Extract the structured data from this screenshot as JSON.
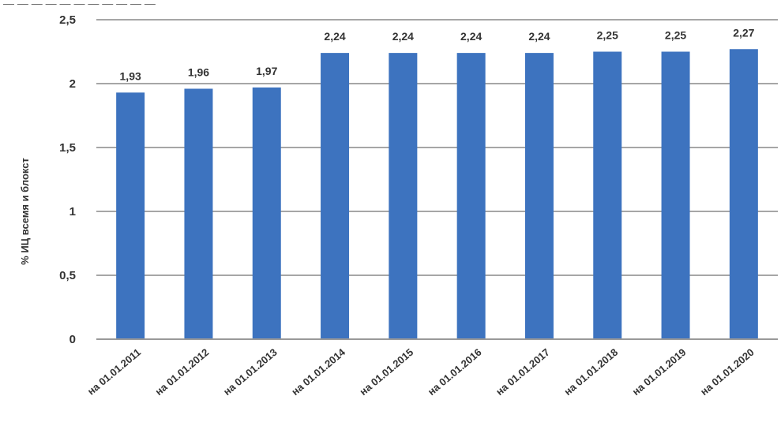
{
  "chart_data": {
    "type": "bar",
    "title": "",
    "xlabel": "",
    "ylabel": "% ИЦ всемя и блокст",
    "ylim": [
      0,
      2.5
    ],
    "yticks": [
      "0",
      "0,5",
      "1",
      "1,5",
      "2",
      "2,5"
    ],
    "grid": true,
    "categories": [
      "на 01.01.2011",
      "на 01.01.2012",
      "на 01.01.2013",
      "на 01.01.2014",
      "на 01.01.2015",
      "на 01.01.2016",
      "на 01.01.2017",
      "на 01.01.2018",
      "на 01.01.2019",
      "на 01.01.2020"
    ],
    "values": [
      1.93,
      1.96,
      1.97,
      2.24,
      2.24,
      2.24,
      2.24,
      2.25,
      2.25,
      2.27
    ],
    "value_labels": [
      "1,93",
      "1,96",
      "1,97",
      "2,24",
      "2,24",
      "2,24",
      "2,24",
      "2,25",
      "2,25",
      "2,27"
    ],
    "colors": {
      "bar": "#3d73bf",
      "grid": "#a6a6a6",
      "axis": "#999999"
    }
  }
}
